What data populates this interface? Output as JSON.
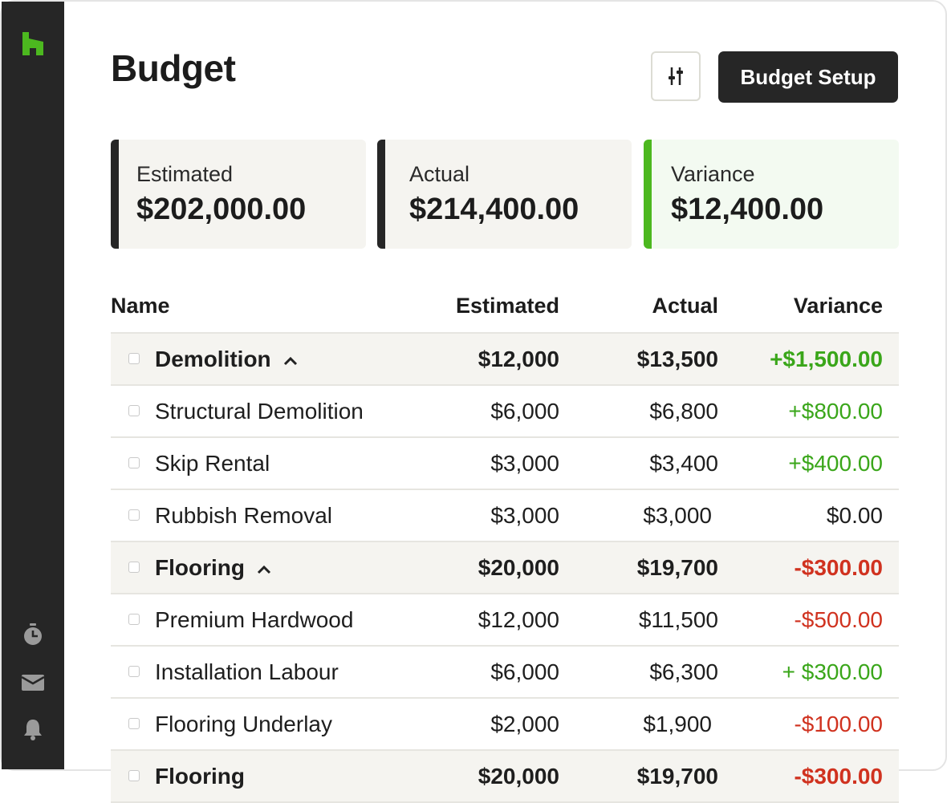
{
  "page": {
    "title": "Budget"
  },
  "toolbar": {
    "filter_icon": "sliders-icon",
    "setup_label": "Budget Setup"
  },
  "colors": {
    "accent_green": "#4cb81f",
    "positive": "#3aa61a",
    "negative": "#d0321f",
    "sidebar": "#262626"
  },
  "sidebar": {
    "icons": [
      "houzz-logo-icon",
      "timer-icon",
      "mail-icon",
      "bell-icon"
    ]
  },
  "summary": {
    "estimated": {
      "label": "Estimated",
      "value": "$202,000.00"
    },
    "actual": {
      "label": "Actual",
      "value": "$214,400.00"
    },
    "variance": {
      "label": "Variance",
      "value": "$12,400.00"
    }
  },
  "table": {
    "headers": {
      "name": "Name",
      "estimated": "Estimated",
      "actual": "Actual",
      "variance": "Variance"
    },
    "rows": [
      {
        "name": "Demolition",
        "estimated": "$12,000",
        "actual": "$13,500",
        "variance": "+$1,500.00"
      },
      {
        "name": "Structural Demolition",
        "estimated": "$6,000",
        "actual": "$6,800",
        "variance": "+$800.00"
      },
      {
        "name": "Skip Rental",
        "estimated": "$3,000",
        "actual": "$3,400",
        "variance": "+$400.00"
      },
      {
        "name": "Rubbish Removal",
        "estimated": "$3,000",
        "actual": "$3,000",
        "variance": "$0.00"
      },
      {
        "name": "Flooring",
        "estimated": "$20,000",
        "actual": "$19,700",
        "variance": "-$300.00"
      },
      {
        "name": "Premium Hardwood",
        "estimated": "$12,000",
        "actual": "$11,500",
        "variance": "-$500.00"
      },
      {
        "name": "Installation Labour",
        "estimated": "$6,000",
        "actual": "$6,300",
        "variance": "+ $300.00"
      },
      {
        "name": "Flooring Underlay",
        "estimated": "$2,000",
        "actual": "$1,900",
        "variance": "-$100.00"
      },
      {
        "name": "Flooring",
        "estimated": "$20,000",
        "actual": "$19,700",
        "variance": "-$300.00"
      }
    ]
  }
}
